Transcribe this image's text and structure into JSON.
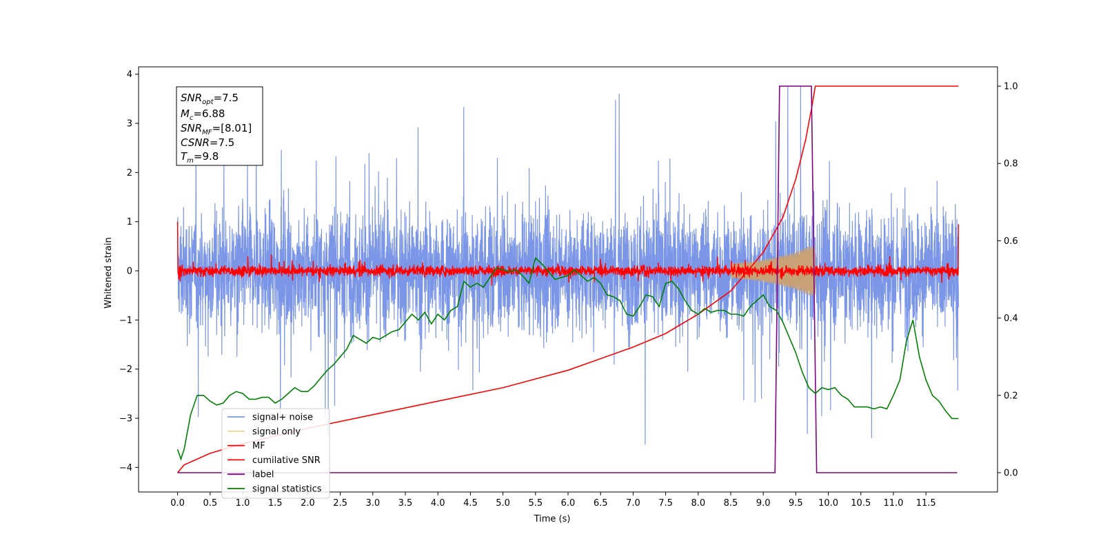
{
  "chart_data": {
    "type": "line",
    "xlabel": "Time (s)",
    "ylabel": "Whitened strain",
    "xlim": [
      -0.6,
      12.6
    ],
    "ylim": [
      -4.5,
      4.15
    ],
    "y2lim": [
      -0.05,
      1.05
    ],
    "xticks": [
      "0.0",
      "0.5",
      "1.0",
      "1.5",
      "2.0",
      "2.5",
      "3.0",
      "3.5",
      "4.0",
      "4.5",
      "5.0",
      "5.5",
      "6.0",
      "6.5",
      "7.0",
      "7.5",
      "8.0",
      "8.5",
      "9.0",
      "9.5",
      "10.0",
      "10.5",
      "11.0",
      "11.5"
    ],
    "yticks": [
      "−4",
      "−3",
      "−2",
      "−1",
      "0",
      "1",
      "2",
      "3",
      "4"
    ],
    "y2ticks": [
      "0.0",
      "0.2",
      "0.4",
      "0.6",
      "0.8",
      "1.0"
    ],
    "legend_position": "lower-left",
    "info_box": {
      "snr_opt": "=7.5",
      "mc": "=6.88",
      "snr_mf": "=[8.01]",
      "csnr": "=7.5",
      "tm": "=9.8"
    },
    "series": [
      {
        "name": "signal+ noise",
        "color": "#7b96e6",
        "axis": "left",
        "description": "dense noise band",
        "x_range": [
          0.0,
          12.0
        ],
        "approx_band": [
          -2.5,
          2.5
        ],
        "approx_extremes": [
          -4.15,
          3.75
        ]
      },
      {
        "name": "signal only",
        "color": "#f5d38b",
        "axis": "left",
        "description": "chirp growing before merger",
        "x": [
          8.5,
          8.9,
          9.2,
          9.5,
          9.7,
          9.8
        ],
        "envelope": [
          0.15,
          0.2,
          0.28,
          0.38,
          0.5,
          0.5
        ]
      },
      {
        "name": "MF",
        "color": "#ff0000",
        "axis": "left",
        "description": "matched filter output",
        "x_range": [
          0.0,
          12.0
        ],
        "approx_band": [
          -0.2,
          0.2
        ]
      },
      {
        "name": "cumilative SNR",
        "color": "#ff0000",
        "axis": "right",
        "x": [
          0.0,
          0.1,
          0.5,
          1.0,
          2.0,
          3.0,
          4.0,
          5.0,
          6.0,
          7.0,
          7.5,
          8.0,
          8.5,
          9.0,
          9.3,
          9.5,
          9.65,
          9.75,
          9.8,
          12.0
        ],
        "values": [
          0.0,
          0.02,
          0.05,
          0.075,
          0.115,
          0.15,
          0.185,
          0.22,
          0.265,
          0.325,
          0.36,
          0.41,
          0.47,
          0.57,
          0.66,
          0.76,
          0.86,
          0.95,
          1.0,
          1.0
        ]
      },
      {
        "name": "label",
        "color": "#800080",
        "axis": "right",
        "x": [
          0.0,
          9.18,
          9.25,
          9.74,
          9.82,
          11.98
        ],
        "values": [
          0.0,
          0.0,
          1.0,
          1.0,
          0.0,
          0.0
        ]
      },
      {
        "name": "signal statistics",
        "color": "#008000",
        "axis": "right",
        "x": [
          0.0,
          0.05,
          0.1,
          0.2,
          0.3,
          0.4,
          0.5,
          0.6,
          0.7,
          0.8,
          0.9,
          1.0,
          1.1,
          1.2,
          1.3,
          1.4,
          1.5,
          1.6,
          1.7,
          1.8,
          1.9,
          2.0,
          2.1,
          2.2,
          2.3,
          2.4,
          2.5,
          2.6,
          2.7,
          2.8,
          2.9,
          3.0,
          3.1,
          3.2,
          3.3,
          3.4,
          3.5,
          3.6,
          3.7,
          3.8,
          3.9,
          4.0,
          4.1,
          4.2,
          4.3,
          4.4,
          4.5,
          4.6,
          4.7,
          4.8,
          4.9,
          5.0,
          5.1,
          5.2,
          5.3,
          5.4,
          5.5,
          5.6,
          5.7,
          5.8,
          5.9,
          6.0,
          6.1,
          6.2,
          6.3,
          6.4,
          6.5,
          6.6,
          6.7,
          6.8,
          6.9,
          7.0,
          7.1,
          7.2,
          7.3,
          7.4,
          7.5,
          7.6,
          7.7,
          7.8,
          7.9,
          8.0,
          8.1,
          8.2,
          8.3,
          8.4,
          8.5,
          8.6,
          8.7,
          8.8,
          8.9,
          9.0,
          9.1,
          9.2,
          9.3,
          9.4,
          9.5,
          9.6,
          9.7,
          9.8,
          9.9,
          10.0,
          10.1,
          10.2,
          10.3,
          10.4,
          10.5,
          10.6,
          10.7,
          10.8,
          10.9,
          11.0,
          11.1,
          11.2,
          11.3,
          11.4,
          11.5,
          11.6,
          11.7,
          11.8,
          11.9,
          12.0
        ],
        "values": [
          0.06,
          0.035,
          0.06,
          0.15,
          0.2,
          0.2,
          0.185,
          0.175,
          0.18,
          0.2,
          0.21,
          0.205,
          0.19,
          0.19,
          0.195,
          0.195,
          0.18,
          0.19,
          0.205,
          0.22,
          0.21,
          0.21,
          0.225,
          0.245,
          0.265,
          0.28,
          0.3,
          0.32,
          0.355,
          0.345,
          0.335,
          0.35,
          0.345,
          0.355,
          0.365,
          0.37,
          0.39,
          0.41,
          0.395,
          0.415,
          0.385,
          0.41,
          0.395,
          0.42,
          0.43,
          0.495,
          0.48,
          0.49,
          0.48,
          0.505,
          0.53,
          0.525,
          0.52,
          0.525,
          0.51,
          0.49,
          0.555,
          0.54,
          0.52,
          0.5,
          0.505,
          0.51,
          0.525,
          0.51,
          0.495,
          0.505,
          0.49,
          0.46,
          0.455,
          0.445,
          0.41,
          0.405,
          0.43,
          0.46,
          0.455,
          0.43,
          0.49,
          0.495,
          0.475,
          0.445,
          0.42,
          0.41,
          0.425,
          0.415,
          0.42,
          0.42,
          0.41,
          0.41,
          0.405,
          0.43,
          0.445,
          0.46,
          0.43,
          0.42,
          0.39,
          0.35,
          0.31,
          0.26,
          0.22,
          0.205,
          0.22,
          0.215,
          0.22,
          0.2,
          0.19,
          0.17,
          0.17,
          0.17,
          0.165,
          0.17,
          0.165,
          0.2,
          0.24,
          0.34,
          0.395,
          0.3,
          0.24,
          0.2,
          0.185,
          0.16,
          0.14,
          0.14
        ]
      }
    ]
  }
}
